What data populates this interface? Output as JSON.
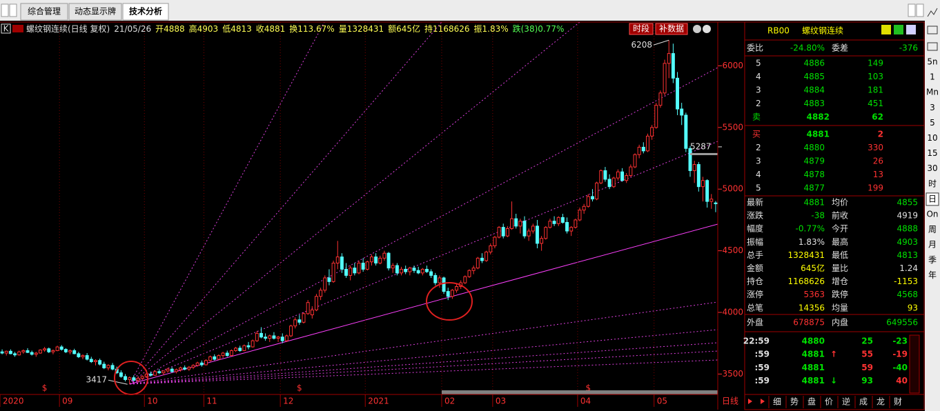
{
  "tabs": [
    "综合管理",
    "动态显示牌",
    "技术分析"
  ],
  "chart_data": {
    "type": "candlestick",
    "header": {
      "icon_label": "K",
      "name": "螺纹钢连续(日线 复权)",
      "date": "21/05/26",
      "items": [
        "开4888",
        "高4903",
        "低4813",
        "收4881",
        "换113.67%",
        "量1328431",
        "额645亿",
        "持1168626",
        "振1.83%",
        "跌(38)0.77%"
      ]
    },
    "buttons": [
      "时段",
      "补数据"
    ],
    "up_color": "#ff3232",
    "down_color": "#54ffff",
    "ylim": [
      3340,
      6355
    ],
    "yticks": [
      3500,
      4000,
      4500,
      5000,
      5500,
      6000
    ],
    "xticks": [
      {
        "value": 0,
        "label": "2020"
      },
      {
        "value": 14,
        "label": "09"
      },
      {
        "value": 34,
        "label": "10"
      },
      {
        "value": 48,
        "label": "11"
      },
      {
        "value": 66,
        "label": "12"
      },
      {
        "value": 86,
        "label": "2021"
      },
      {
        "value": 104,
        "label": "02"
      },
      {
        "value": 116,
        "label": "03"
      },
      {
        "value": 136,
        "label": "04"
      },
      {
        "value": 154,
        "label": "05"
      }
    ],
    "period_label": "日线",
    "high_label": 6208,
    "low_label": 3417,
    "price_line": 5287,
    "event_marks": [
      {
        "value": 10,
        "label": "$"
      },
      {
        "value": 70,
        "label": "$"
      },
      {
        "value": 138,
        "label": "$"
      }
    ],
    "ohlc": [
      [
        3680,
        3700,
        3660,
        3670
      ],
      [
        3670,
        3690,
        3650,
        3685
      ],
      [
        3685,
        3700,
        3660,
        3665
      ],
      [
        3665,
        3680,
        3640,
        3655
      ],
      [
        3655,
        3690,
        3650,
        3680
      ],
      [
        3680,
        3700,
        3665,
        3690
      ],
      [
        3690,
        3710,
        3670,
        3675
      ],
      [
        3675,
        3690,
        3650,
        3660
      ],
      [
        3660,
        3680,
        3640,
        3670
      ],
      [
        3670,
        3700,
        3665,
        3695
      ],
      [
        3695,
        3720,
        3680,
        3705
      ],
      [
        3705,
        3715,
        3670,
        3680
      ],
      [
        3680,
        3700,
        3660,
        3690
      ],
      [
        3690,
        3730,
        3685,
        3720
      ],
      [
        3720,
        3735,
        3690,
        3700
      ],
      [
        3700,
        3710,
        3670,
        3680
      ],
      [
        3680,
        3700,
        3660,
        3690
      ],
      [
        3690,
        3705,
        3660,
        3665
      ],
      [
        3665,
        3680,
        3630,
        3640
      ],
      [
        3640,
        3660,
        3620,
        3650
      ],
      [
        3650,
        3670,
        3610,
        3620
      ],
      [
        3620,
        3640,
        3590,
        3600
      ],
      [
        3600,
        3620,
        3570,
        3610
      ],
      [
        3610,
        3625,
        3570,
        3580
      ],
      [
        3580,
        3600,
        3540,
        3550
      ],
      [
        3550,
        3580,
        3530,
        3570
      ],
      [
        3570,
        3590,
        3530,
        3540
      ],
      [
        3540,
        3560,
        3500,
        3510
      ],
      [
        3510,
        3530,
        3470,
        3480
      ],
      [
        3480,
        3500,
        3440,
        3455
      ],
      [
        3455,
        3480,
        3417,
        3470
      ],
      [
        3470,
        3490,
        3440,
        3450
      ],
      [
        3450,
        3480,
        3430,
        3465
      ],
      [
        3465,
        3490,
        3450,
        3480
      ],
      [
        3480,
        3510,
        3470,
        3500
      ],
      [
        3500,
        3520,
        3480,
        3490
      ],
      [
        3490,
        3530,
        3485,
        3520
      ],
      [
        3520,
        3540,
        3500,
        3510
      ],
      [
        3510,
        3530,
        3490,
        3525
      ],
      [
        3525,
        3550,
        3510,
        3540
      ],
      [
        3540,
        3555,
        3510,
        3520
      ],
      [
        3520,
        3545,
        3505,
        3535
      ],
      [
        3535,
        3560,
        3520,
        3550
      ],
      [
        3550,
        3570,
        3530,
        3540
      ],
      [
        3540,
        3565,
        3525,
        3555
      ],
      [
        3555,
        3580,
        3540,
        3570
      ],
      [
        3570,
        3600,
        3560,
        3590
      ],
      [
        3590,
        3610,
        3560,
        3575
      ],
      [
        3575,
        3620,
        3570,
        3610
      ],
      [
        3610,
        3650,
        3600,
        3640
      ],
      [
        3640,
        3660,
        3610,
        3620
      ],
      [
        3620,
        3660,
        3615,
        3650
      ],
      [
        3650,
        3680,
        3630,
        3670
      ],
      [
        3670,
        3690,
        3640,
        3650
      ],
      [
        3650,
        3700,
        3645,
        3690
      ],
      [
        3690,
        3720,
        3680,
        3710
      ],
      [
        3710,
        3730,
        3680,
        3690
      ],
      [
        3690,
        3740,
        3685,
        3730
      ],
      [
        3730,
        3760,
        3700,
        3720
      ],
      [
        3720,
        3780,
        3715,
        3770
      ],
      [
        3770,
        3850,
        3760,
        3830
      ],
      [
        3830,
        3880,
        3790,
        3800
      ],
      [
        3800,
        3830,
        3770,
        3790
      ],
      [
        3790,
        3820,
        3760,
        3810
      ],
      [
        3810,
        3840,
        3780,
        3790
      ],
      [
        3790,
        3810,
        3760,
        3800
      ],
      [
        3800,
        3830,
        3750,
        3770
      ],
      [
        3770,
        3820,
        3760,
        3810
      ],
      [
        3810,
        3900,
        3800,
        3890
      ],
      [
        3890,
        3960,
        3870,
        3940
      ],
      [
        3940,
        3980,
        3900,
        3920
      ],
      [
        3920,
        4000,
        3910,
        3990
      ],
      [
        3990,
        4100,
        3980,
        4080
      ],
      [
        3980,
        4050,
        3950,
        4020
      ],
      [
        4020,
        4150,
        4010,
        4130
      ],
      [
        4130,
        4200,
        4100,
        4180
      ],
      [
        4180,
        4300,
        4160,
        4280
      ],
      [
        4280,
        4350,
        4220,
        4250
      ],
      [
        4250,
        4420,
        4240,
        4400
      ],
      [
        4400,
        4580,
        4350,
        4450
      ],
      [
        4450,
        4480,
        4320,
        4350
      ],
      [
        4350,
        4400,
        4280,
        4300
      ],
      [
        4300,
        4380,
        4260,
        4360
      ],
      [
        4360,
        4400,
        4300,
        4320
      ],
      [
        4320,
        4420,
        4310,
        4400
      ],
      [
        4400,
        4440,
        4330,
        4350
      ],
      [
        4350,
        4420,
        4340,
        4410
      ],
      [
        4410,
        4470,
        4380,
        4450
      ],
      [
        4450,
        4480,
        4380,
        4400
      ],
      [
        4400,
        4460,
        4390,
        4440
      ],
      [
        4440,
        4500,
        4420,
        4480
      ],
      [
        4480,
        4490,
        4340,
        4360
      ],
      [
        4360,
        4400,
        4320,
        4380
      ],
      [
        4380,
        4400,
        4300,
        4320
      ],
      [
        4320,
        4370,
        4300,
        4350
      ],
      [
        4350,
        4380,
        4310,
        4330
      ],
      [
        4330,
        4370,
        4300,
        4360
      ],
      [
        4360,
        4380,
        4320,
        4340
      ],
      [
        4340,
        4370,
        4310,
        4320
      ],
      [
        4320,
        4360,
        4300,
        4350
      ],
      [
        4350,
        4380,
        4320,
        4330
      ],
      [
        4330,
        4350,
        4280,
        4300
      ],
      [
        4300,
        4320,
        4220,
        4240
      ],
      [
        4240,
        4300,
        4200,
        4280
      ],
      [
        4280,
        4290,
        4150,
        4170
      ],
      [
        4170,
        4200,
        4100,
        4130
      ],
      [
        4130,
        4190,
        4110,
        4180
      ],
      [
        4180,
        4230,
        4160,
        4210
      ],
      [
        4210,
        4260,
        4190,
        4240
      ],
      [
        4240,
        4300,
        4230,
        4290
      ],
      [
        4290,
        4350,
        4280,
        4340
      ],
      [
        4340,
        4380,
        4310,
        4360
      ],
      [
        4360,
        4450,
        4350,
        4440
      ],
      [
        4440,
        4480,
        4400,
        4420
      ],
      [
        4420,
        4500,
        4410,
        4490
      ],
      [
        4490,
        4560,
        4470,
        4540
      ],
      [
        4540,
        4620,
        4520,
        4610
      ],
      [
        4610,
        4700,
        4600,
        4690
      ],
      [
        4690,
        4720,
        4600,
        4620
      ],
      [
        4620,
        4700,
        4610,
        4680
      ],
      [
        4680,
        4900,
        4670,
        4760
      ],
      [
        4760,
        4800,
        4680,
        4700
      ],
      [
        4700,
        4760,
        4640,
        4740
      ],
      [
        4740,
        4780,
        4600,
        4620
      ],
      [
        4620,
        4680,
        4580,
        4660
      ],
      [
        4660,
        4720,
        4640,
        4700
      ],
      [
        4700,
        4750,
        4520,
        4560
      ],
      [
        4560,
        4620,
        4500,
        4600
      ],
      [
        4600,
        4700,
        4590,
        4690
      ],
      [
        4690,
        4760,
        4680,
        4740
      ],
      [
        4740,
        4780,
        4700,
        4720
      ],
      [
        4720,
        4780,
        4700,
        4770
      ],
      [
        4770,
        4800,
        4720,
        4730
      ],
      [
        4730,
        4770,
        4640,
        4660
      ],
      [
        4660,
        4700,
        4620,
        4690
      ],
      [
        4690,
        4760,
        4680,
        4750
      ],
      [
        4750,
        4850,
        4740,
        4830
      ],
      [
        4830,
        4880,
        4800,
        4860
      ],
      [
        4860,
        4960,
        4850,
        4940
      ],
      [
        4940,
        5000,
        4900,
        4920
      ],
      [
        4920,
        5060,
        4910,
        5050
      ],
      [
        5050,
        5160,
        5040,
        5150
      ],
      [
        5150,
        5180,
        5060,
        5080
      ],
      [
        5080,
        5120,
        5000,
        5020
      ],
      [
        5020,
        5100,
        5010,
        5090
      ],
      [
        5090,
        5160,
        5070,
        5140
      ],
      [
        5140,
        5170,
        5060,
        5070
      ],
      [
        5070,
        5130,
        5050,
        5110
      ],
      [
        5110,
        5200,
        5100,
        5180
      ],
      [
        5180,
        5290,
        5170,
        5280
      ],
      [
        5280,
        5360,
        5250,
        5340
      ],
      [
        5340,
        5380,
        5290,
        5310
      ],
      [
        5310,
        5450,
        5300,
        5430
      ],
      [
        5430,
        5520,
        5400,
        5500
      ],
      [
        5500,
        5700,
        5490,
        5680
      ],
      [
        5680,
        5800,
        5660,
        5780
      ],
      [
        5780,
        6050,
        5760,
        6020
      ],
      [
        6020,
        6208,
        5900,
        6100
      ],
      [
        6100,
        6180,
        5860,
        5900
      ],
      [
        5900,
        5950,
        5600,
        5650
      ],
      [
        5650,
        5700,
        5520,
        5600
      ],
      [
        5600,
        5620,
        5300,
        5330
      ],
      [
        5330,
        5350,
        5100,
        5150
      ],
      [
        5150,
        5230,
        5050,
        5200
      ],
      [
        5200,
        5220,
        4980,
        5020
      ],
      [
        5020,
        5100,
        4900,
        5070
      ],
      [
        5070,
        5080,
        4850,
        4900
      ],
      [
        4900,
        4960,
        4840,
        4919
      ],
      [
        4888,
        4903,
        4813,
        4881
      ]
    ]
  },
  "quote": {
    "code": "RB00",
    "name": "螺纹钢连续",
    "ratio": [
      "委比",
      "-24.80%",
      "委差",
      "-376"
    ],
    "asks": [
      [
        "5",
        "4886",
        "149"
      ],
      [
        "4",
        "4885",
        "103"
      ],
      [
        "3",
        "4884",
        "181"
      ],
      [
        "2",
        "4883",
        "451"
      ],
      [
        "卖",
        "4882",
        "62"
      ]
    ],
    "bids": [
      [
        "买",
        "4881",
        "2"
      ],
      [
        "2",
        "4880",
        "330"
      ],
      [
        "3",
        "4879",
        "26"
      ],
      [
        "4",
        "4878",
        "13"
      ],
      [
        "5",
        "4877",
        "199"
      ]
    ],
    "stats": [
      [
        "最新",
        "4881",
        "均价",
        "4855"
      ],
      [
        "涨跌",
        "-38",
        "前收",
        "4919"
      ],
      [
        "幅度",
        "-0.77%",
        "今开",
        "4888"
      ],
      [
        "振幅",
        "1.83%",
        "最高",
        "4903"
      ],
      [
        "总手",
        "1328431",
        "最低",
        "4813"
      ],
      [
        "金额",
        "645亿",
        "量比",
        "1.24"
      ],
      [
        "持仓",
        "1168626",
        "增仓",
        "-1153"
      ],
      [
        "涨停",
        "5363",
        "跌停",
        "4568"
      ],
      [
        "总笔",
        "14356",
        "均量",
        "93"
      ]
    ],
    "outer": [
      "外盘",
      "678875",
      "内盘",
      "649556"
    ],
    "ticks": [
      [
        "22:59",
        "4880",
        "25",
        "-23"
      ],
      [
        ":59",
        "4881",
        "↑",
        "55",
        "-19"
      ],
      [
        ":59",
        "4881",
        "59",
        "-40"
      ],
      [
        ":59",
        "4881",
        "↓",
        "93",
        "40"
      ]
    ],
    "tabs": [
      "细",
      "势",
      "盘",
      "价",
      "逆",
      "成",
      "龙",
      "财"
    ]
  },
  "toolbar": [
    "5n",
    "1",
    "Mn",
    "3",
    "5",
    "10",
    "15",
    "30",
    "时",
    "日",
    "On",
    "周",
    "月",
    "季",
    "年"
  ]
}
